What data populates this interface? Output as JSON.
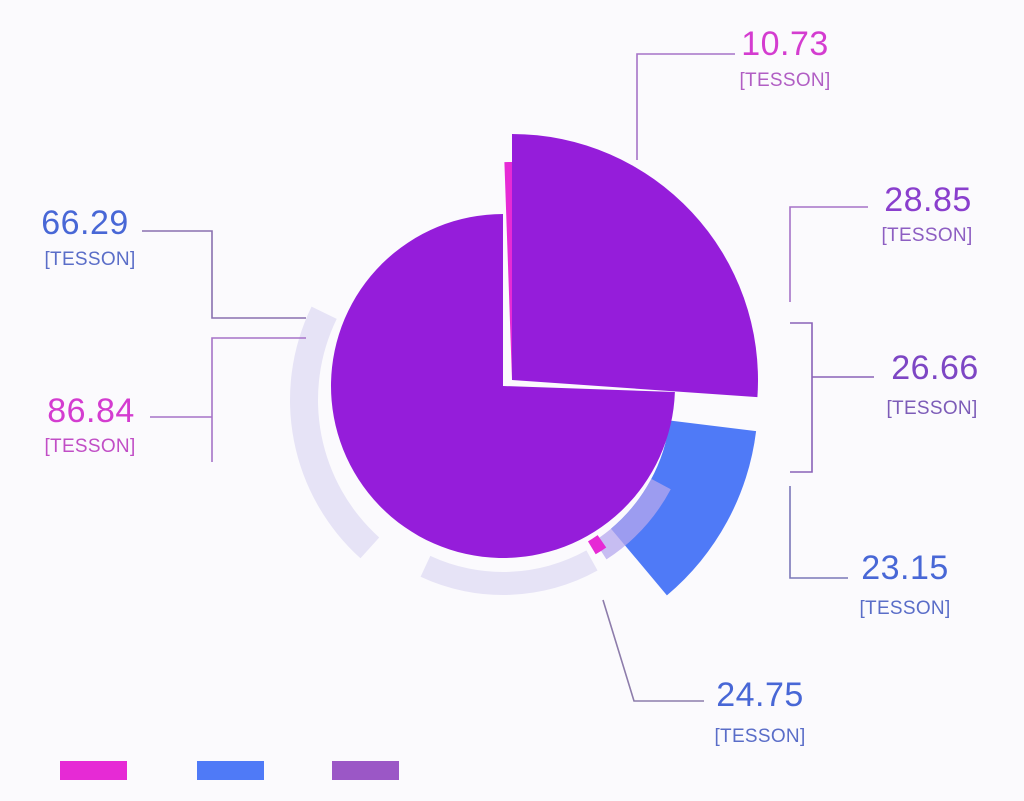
{
  "chart_data": {
    "type": "pie",
    "title": "",
    "series_colors": [
      "#e62ad5",
      "#4f7af7",
      "#9b57c6"
    ],
    "slices": [
      {
        "value": 10.73,
        "label": "[TESSON]",
        "color": "#e62ad5"
      },
      {
        "value": 28.85,
        "label": "[TESSON]",
        "color": "#8e35d8"
      },
      {
        "value": 26.66,
        "label": "[TESSON]",
        "color": "#8e35d8"
      },
      {
        "value": 23.15,
        "label": "[TESSON]",
        "color": "#4f6fe6"
      },
      {
        "value": 24.75,
        "label": "[TESSON]",
        "color": "#4f6fe6"
      },
      {
        "value": 66.29,
        "label": "[TESSON]",
        "color": "#4f6fe6"
      },
      {
        "value": 86.84,
        "label": "[TESSON]",
        "color": "#e62ad5"
      }
    ],
    "legend": {
      "position": "bottom-left",
      "entries": [
        "#e62ad5",
        "#4f7af7",
        "#9b57c6"
      ]
    },
    "grid": false
  }
}
